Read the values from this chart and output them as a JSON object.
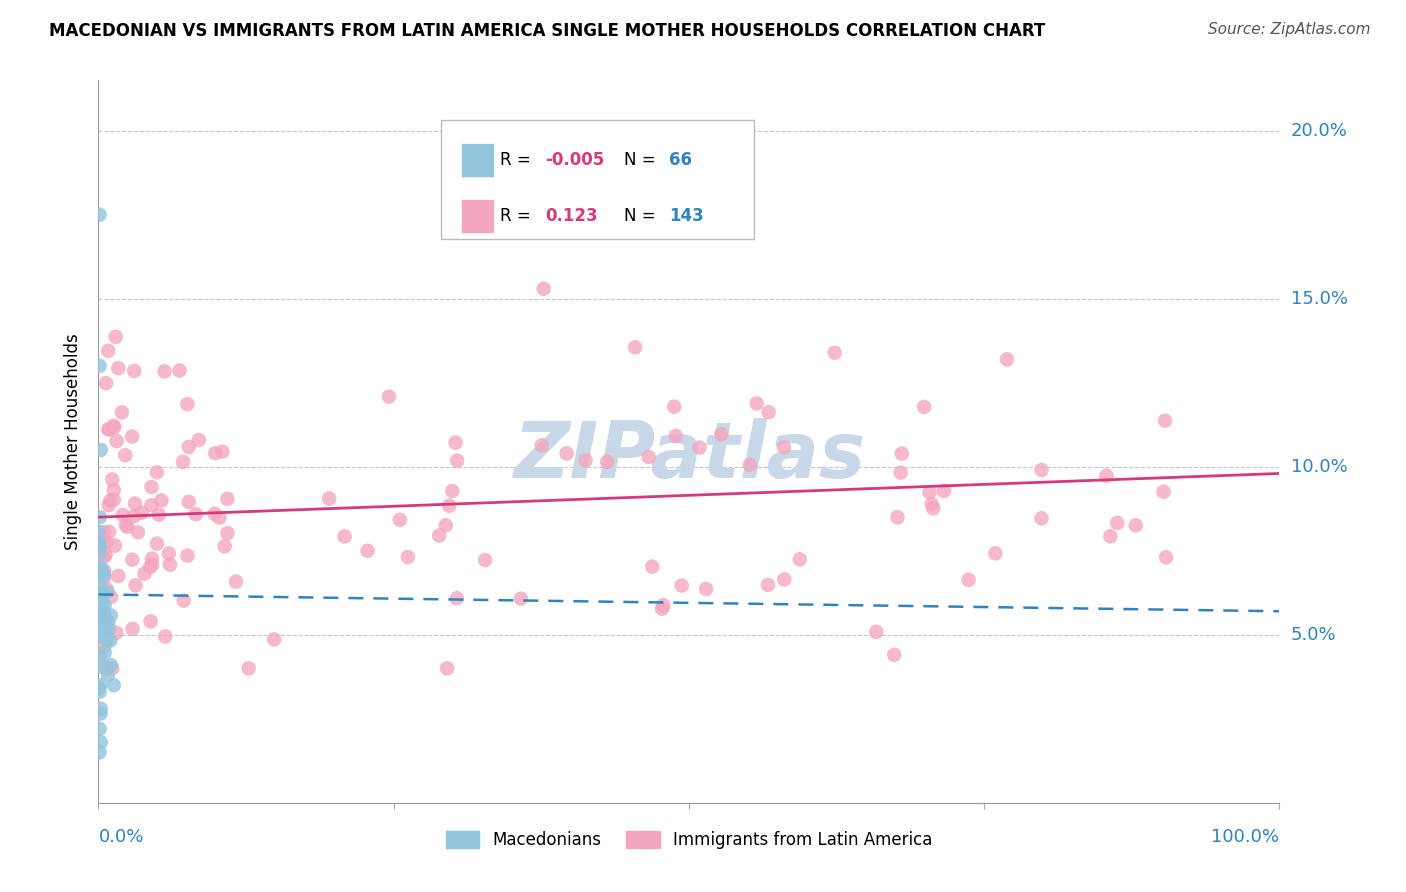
{
  "title": "MACEDONIAN VS IMMIGRANTS FROM LATIN AMERICA SINGLE MOTHER HOUSEHOLDS CORRELATION CHART",
  "source": "Source: ZipAtlas.com",
  "ylabel": "Single Mother Households",
  "y_ticks": [
    0.05,
    0.1,
    0.15,
    0.2
  ],
  "y_tick_labels": [
    "5.0%",
    "10.0%",
    "15.0%",
    "20.0%"
  ],
  "x_range": [
    0.0,
    1.0
  ],
  "y_range": [
    0.0,
    0.215
  ],
  "legend_blue_r": "-0.005",
  "legend_blue_n": "66",
  "legend_pink_r": "0.123",
  "legend_pink_n": "143",
  "blue_color": "#92c5de",
  "pink_color": "#f4a6be",
  "blue_line_color": "#3182bd",
  "pink_line_color": "#d63a7a",
  "watermark_color": "#c8d8e8",
  "blue_line_start_y": 0.062,
  "blue_line_end_y": 0.057,
  "pink_line_start_y": 0.085,
  "pink_line_end_y": 0.098
}
